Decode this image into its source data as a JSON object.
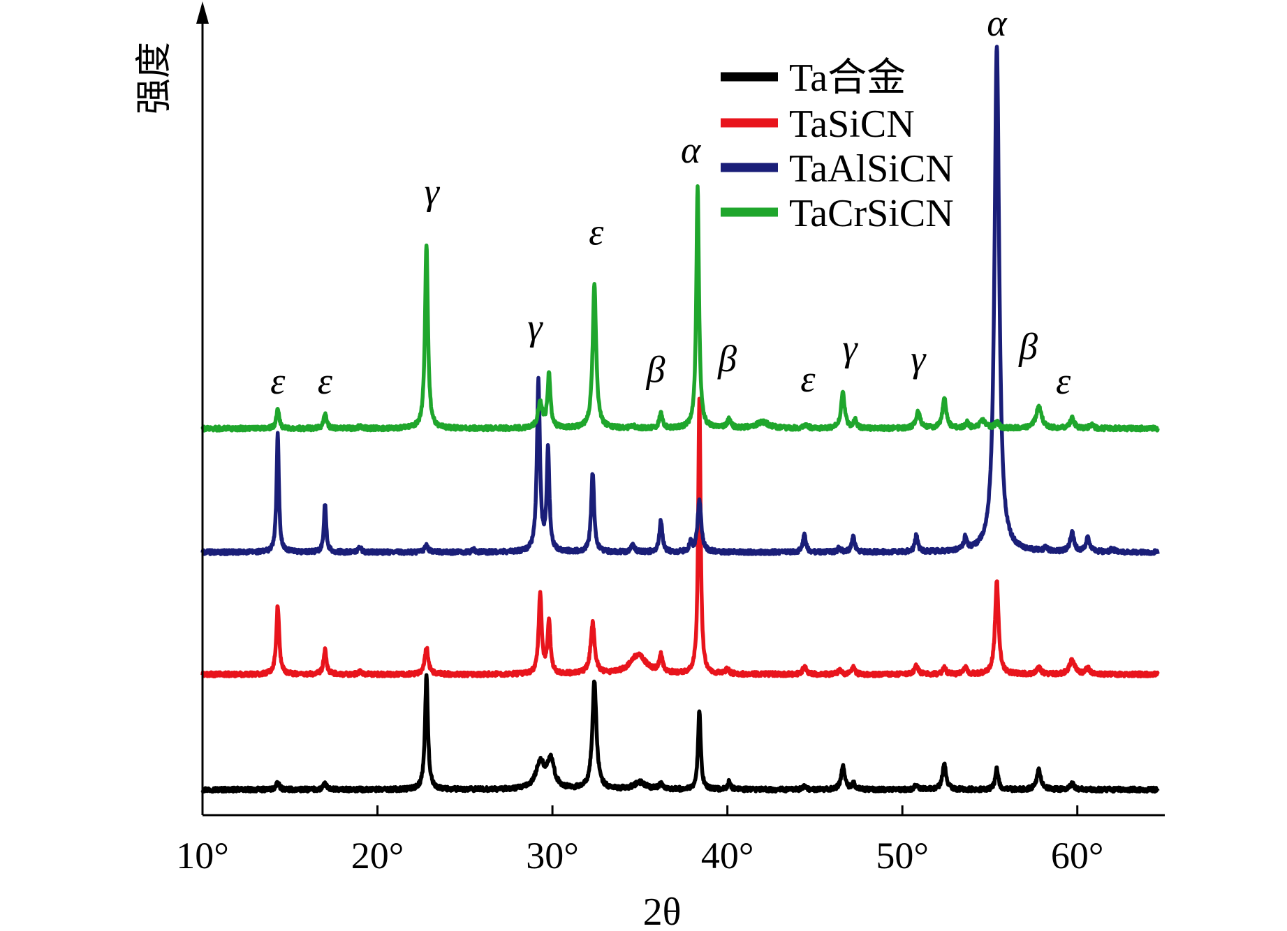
{
  "chart_data": {
    "type": "line",
    "title": "",
    "xlabel": "2θ",
    "ylabel": "强度",
    "xlim": [
      10,
      65
    ],
    "ylim": [
      0,
      100
    ],
    "x_ticks": [
      {
        "value": 10,
        "label": "10°"
      },
      {
        "value": 20,
        "label": "20°"
      },
      {
        "value": 30,
        "label": "30°"
      },
      {
        "value": 40,
        "label": "40°"
      },
      {
        "value": 50,
        "label": "50°"
      },
      {
        "value": 60,
        "label": "60°"
      }
    ],
    "y_ticks": [],
    "legend": {
      "position": "top-right"
    },
    "grid": false,
    "colors": {
      "Ta合金": "#000000",
      "TaSiCN": "#e8141c",
      "TaAlSiCN": "#1a1e78",
      "TaCrSiCN": "#1fa62c"
    },
    "series": [
      {
        "name": "Ta合金",
        "color": "#000000",
        "baseline": 3.3,
        "peaks": [
          {
            "x": 14.3,
            "h": 0.8,
            "w": 0.12
          },
          {
            "x": 17.0,
            "h": 0.7,
            "w": 0.12
          },
          {
            "x": 22.8,
            "h": 14.7,
            "w": 0.1
          },
          {
            "x": 29.3,
            "h": 3.3,
            "w": 0.3
          },
          {
            "x": 29.9,
            "h": 3.6,
            "w": 0.25
          },
          {
            "x": 32.4,
            "h": 13.9,
            "w": 0.14
          },
          {
            "x": 35.0,
            "h": 0.9,
            "w": 0.4
          },
          {
            "x": 36.2,
            "h": 0.6,
            "w": 0.15
          },
          {
            "x": 38.4,
            "h": 10.2,
            "w": 0.09
          },
          {
            "x": 40.1,
            "h": 1.0,
            "w": 0.1
          },
          {
            "x": 44.4,
            "h": 0.4,
            "w": 0.12
          },
          {
            "x": 46.6,
            "h": 3.1,
            "w": 0.12
          },
          {
            "x": 47.2,
            "h": 0.8,
            "w": 0.12
          },
          {
            "x": 50.8,
            "h": 0.6,
            "w": 0.12
          },
          {
            "x": 52.4,
            "h": 3.2,
            "w": 0.13
          },
          {
            "x": 55.4,
            "h": 2.8,
            "w": 0.1
          },
          {
            "x": 57.8,
            "h": 2.6,
            "w": 0.14
          },
          {
            "x": 59.7,
            "h": 0.8,
            "w": 0.14
          }
        ]
      },
      {
        "name": "TaSiCN",
        "color": "#e8141c",
        "baseline": 18.2,
        "peaks": [
          {
            "x": 14.3,
            "h": 8.9,
            "w": 0.1
          },
          {
            "x": 17.0,
            "h": 3.1,
            "w": 0.1
          },
          {
            "x": 19.0,
            "h": 0.4,
            "w": 0.1
          },
          {
            "x": 22.8,
            "h": 3.5,
            "w": 0.12
          },
          {
            "x": 29.3,
            "h": 10.4,
            "w": 0.1
          },
          {
            "x": 29.8,
            "h": 6.9,
            "w": 0.1
          },
          {
            "x": 32.3,
            "h": 6.5,
            "w": 0.14
          },
          {
            "x": 34.9,
            "h": 2.5,
            "w": 0.55
          },
          {
            "x": 36.2,
            "h": 2.2,
            "w": 0.12
          },
          {
            "x": 38.4,
            "h": 35.6,
            "w": 0.08
          },
          {
            "x": 40.0,
            "h": 0.7,
            "w": 0.1
          },
          {
            "x": 44.4,
            "h": 1.0,
            "w": 0.12
          },
          {
            "x": 46.4,
            "h": 0.6,
            "w": 0.1
          },
          {
            "x": 47.2,
            "h": 0.9,
            "w": 0.1
          },
          {
            "x": 50.8,
            "h": 1.2,
            "w": 0.12
          },
          {
            "x": 52.4,
            "h": 0.8,
            "w": 0.12
          },
          {
            "x": 53.6,
            "h": 0.8,
            "w": 0.12
          },
          {
            "x": 55.4,
            "h": 12.1,
            "w": 0.12
          },
          {
            "x": 57.8,
            "h": 1.0,
            "w": 0.13
          },
          {
            "x": 59.7,
            "h": 1.9,
            "w": 0.18
          },
          {
            "x": 60.6,
            "h": 0.8,
            "w": 0.14
          }
        ]
      },
      {
        "name": "TaAlSiCN",
        "color": "#1a1e78",
        "baseline": 34.0,
        "peaks": [
          {
            "x": 14.3,
            "h": 15.3,
            "w": 0.08
          },
          {
            "x": 17.0,
            "h": 6.3,
            "w": 0.08
          },
          {
            "x": 19.0,
            "h": 0.6,
            "w": 0.1
          },
          {
            "x": 22.8,
            "h": 1.0,
            "w": 0.1
          },
          {
            "x": 25.5,
            "h": 0.3,
            "w": 0.1
          },
          {
            "x": 29.2,
            "h": 22.1,
            "w": 0.1
          },
          {
            "x": 29.75,
            "h": 13.2,
            "w": 0.09
          },
          {
            "x": 32.3,
            "h": 10.2,
            "w": 0.1
          },
          {
            "x": 34.6,
            "h": 1.1,
            "w": 0.1
          },
          {
            "x": 36.2,
            "h": 4.1,
            "w": 0.1
          },
          {
            "x": 37.9,
            "h": 1.1,
            "w": 0.1
          },
          {
            "x": 38.4,
            "h": 6.7,
            "w": 0.12
          },
          {
            "x": 44.4,
            "h": 2.2,
            "w": 0.1
          },
          {
            "x": 46.4,
            "h": 0.6,
            "w": 0.1
          },
          {
            "x": 47.2,
            "h": 2.0,
            "w": 0.1
          },
          {
            "x": 50.8,
            "h": 2.1,
            "w": 0.1
          },
          {
            "x": 53.6,
            "h": 1.6,
            "w": 0.1
          },
          {
            "x": 55.4,
            "h": 65.6,
            "w": 0.16
          },
          {
            "x": 58.2,
            "h": 0.5,
            "w": 0.12
          },
          {
            "x": 59.7,
            "h": 2.5,
            "w": 0.13
          },
          {
            "x": 60.6,
            "h": 1.9,
            "w": 0.13
          },
          {
            "x": 62.0,
            "h": 0.4,
            "w": 0.12
          }
        ]
      },
      {
        "name": "TaCrSiCN",
        "color": "#1fa62c",
        "baseline": 50.0,
        "peaks": [
          {
            "x": 14.3,
            "h": 2.7,
            "w": 0.09
          },
          {
            "x": 17.0,
            "h": 2.0,
            "w": 0.1
          },
          {
            "x": 19.0,
            "h": 0.3,
            "w": 0.1
          },
          {
            "x": 22.8,
            "h": 23.9,
            "w": 0.1
          },
          {
            "x": 29.3,
            "h": 3.3,
            "w": 0.15
          },
          {
            "x": 29.8,
            "h": 6.9,
            "w": 0.1
          },
          {
            "x": 32.4,
            "h": 18.5,
            "w": 0.12
          },
          {
            "x": 34.6,
            "h": 0.3,
            "w": 0.12
          },
          {
            "x": 36.2,
            "h": 2.1,
            "w": 0.1
          },
          {
            "x": 38.3,
            "h": 31.5,
            "w": 0.09
          },
          {
            "x": 40.1,
            "h": 1.1,
            "w": 0.12
          },
          {
            "x": 42.0,
            "h": 0.8,
            "w": 0.45
          },
          {
            "x": 44.5,
            "h": 0.5,
            "w": 0.12
          },
          {
            "x": 46.6,
            "h": 4.8,
            "w": 0.12
          },
          {
            "x": 47.3,
            "h": 1.1,
            "w": 0.1
          },
          {
            "x": 50.9,
            "h": 2.1,
            "w": 0.15
          },
          {
            "x": 52.4,
            "h": 3.9,
            "w": 0.13
          },
          {
            "x": 53.7,
            "h": 0.7,
            "w": 0.12
          },
          {
            "x": 54.6,
            "h": 1.0,
            "w": 0.2
          },
          {
            "x": 55.4,
            "h": 0.7,
            "w": 0.14
          },
          {
            "x": 57.8,
            "h": 2.7,
            "w": 0.2
          },
          {
            "x": 59.7,
            "h": 1.3,
            "w": 0.15
          },
          {
            "x": 60.8,
            "h": 0.4,
            "w": 0.14
          }
        ]
      }
    ],
    "annotations": [
      {
        "text": "ε",
        "x": 14.3,
        "y": 54.5
      },
      {
        "text": "ε",
        "x": 17.0,
        "y": 54.5
      },
      {
        "text": "γ",
        "x": 23.1,
        "y": 79.0
      },
      {
        "text": "γ",
        "x": 29.0,
        "y": 61.5
      },
      {
        "text": "ε",
        "x": 32.5,
        "y": 73.8
      },
      {
        "text": "β",
        "x": 35.9,
        "y": 56.0
      },
      {
        "text": "α",
        "x": 37.9,
        "y": 84.4
      },
      {
        "text": "β",
        "x": 40.0,
        "y": 57.4
      },
      {
        "text": "ε",
        "x": 44.6,
        "y": 54.8
      },
      {
        "text": "γ",
        "x": 47.0,
        "y": 58.8
      },
      {
        "text": "γ",
        "x": 50.9,
        "y": 57.4
      },
      {
        "text": "α",
        "x": 55.4,
        "y": 100.8
      },
      {
        "text": "β",
        "x": 57.2,
        "y": 59.0
      },
      {
        "text": "ε",
        "x": 59.2,
        "y": 54.5
      }
    ]
  }
}
